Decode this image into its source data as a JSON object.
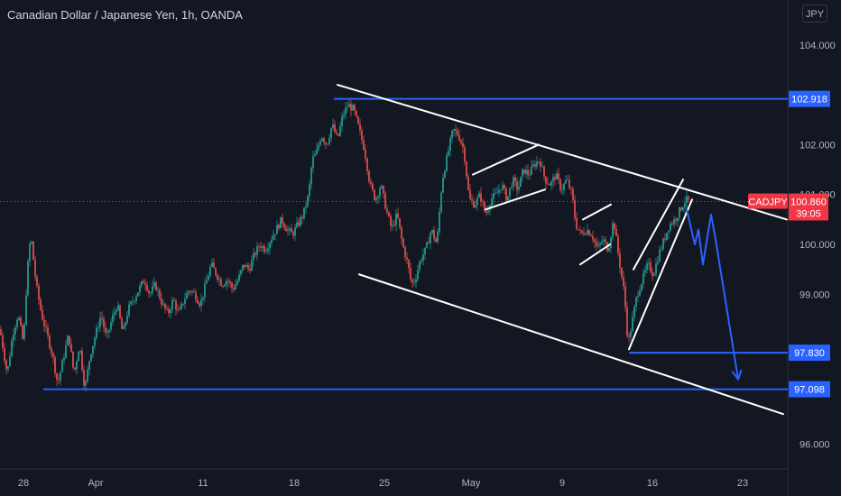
{
  "header": {
    "title": "Canadian Dollar / Japanese Yen, 1h, OANDA",
    "currency": "JPY"
  },
  "colors": {
    "background": "#131722",
    "up": "#26a69a",
    "down": "#ef5350",
    "drawing": "#ffffff",
    "level": "#2962ff",
    "projection": "#2962ff",
    "price_tag": "#f23645"
  },
  "chart_data": {
    "type": "candlestick",
    "title": "Canadian Dollar / Japanese Yen, 1h, OANDA",
    "symbol": "CADJPY",
    "ylim": [
      95.5,
      104.9
    ],
    "y_ticks": [
      96.0,
      97.0,
      98.0,
      99.0,
      100.0,
      101.0,
      102.0,
      103.0,
      104.0
    ],
    "x_ticks": [
      "28",
      "Apr",
      "11",
      "18",
      "25",
      "May",
      "9",
      "16",
      "23"
    ],
    "grid": false,
    "current": {
      "symbol": "CADJPY",
      "price": "100.860",
      "countdown": "39:05"
    },
    "levels": [
      {
        "value": 102.918,
        "label": "102.918"
      },
      {
        "value": 97.83,
        "label": "97.830"
      },
      {
        "value": 97.098,
        "label": "97.098"
      }
    ],
    "price_path": [
      [
        0,
        98.3
      ],
      [
        8,
        97.4
      ],
      [
        14,
        98.2
      ],
      [
        20,
        98.6
      ],
      [
        26,
        98.0
      ],
      [
        30,
        99.4
      ],
      [
        34,
        100.2
      ],
      [
        40,
        99.2
      ],
      [
        46,
        98.6
      ],
      [
        52,
        98.2
      ],
      [
        58,
        97.8
      ],
      [
        64,
        97.2
      ],
      [
        70,
        97.7
      ],
      [
        76,
        98.2
      ],
      [
        82,
        97.4
      ],
      [
        88,
        98.0
      ],
      [
        94,
        97.1
      ],
      [
        100,
        97.8
      ],
      [
        106,
        98.2
      ],
      [
        112,
        98.6
      ],
      [
        118,
        98.1
      ],
      [
        124,
        98.5
      ],
      [
        130,
        98.8
      ],
      [
        136,
        98.2
      ],
      [
        142,
        98.7
      ],
      [
        148,
        98.9
      ],
      [
        154,
        99.1
      ],
      [
        160,
        99.3
      ],
      [
        166,
        99.0
      ],
      [
        172,
        99.2
      ],
      [
        180,
        98.8
      ],
      [
        186,
        98.6
      ],
      [
        192,
        98.9
      ],
      [
        198,
        98.6
      ],
      [
        204,
        98.9
      ],
      [
        210,
        99.1
      ],
      [
        216,
        99.0
      ],
      [
        222,
        98.8
      ],
      [
        228,
        99.2
      ],
      [
        234,
        99.6
      ],
      [
        240,
        99.4
      ],
      [
        246,
        99.2
      ],
      [
        252,
        99.3
      ],
      [
        258,
        99.1
      ],
      [
        264,
        99.3
      ],
      [
        270,
        99.6
      ],
      [
        276,
        99.5
      ],
      [
        282,
        99.8
      ],
      [
        288,
        100.0
      ],
      [
        294,
        99.9
      ],
      [
        300,
        100.1
      ],
      [
        306,
        100.3
      ],
      [
        312,
        100.5
      ],
      [
        318,
        100.3
      ],
      [
        324,
        100.2
      ],
      [
        330,
        100.4
      ],
      [
        336,
        100.6
      ],
      [
        342,
        101.0
      ],
      [
        346,
        101.7
      ],
      [
        350,
        101.8
      ],
      [
        356,
        102.2
      ],
      [
        362,
        102.0
      ],
      [
        368,
        102.4
      ],
      [
        374,
        102.1
      ],
      [
        380,
        102.6
      ],
      [
        386,
        102.8
      ],
      [
        392,
        102.7
      ],
      [
        398,
        102.3
      ],
      [
        404,
        101.9
      ],
      [
        410,
        101.2
      ],
      [
        416,
        100.9
      ],
      [
        422,
        101.2
      ],
      [
        428,
        100.7
      ],
      [
        434,
        100.3
      ],
      [
        440,
        100.6
      ],
      [
        446,
        100.0
      ],
      [
        452,
        99.6
      ],
      [
        456,
        99.2
      ],
      [
        460,
        99.3
      ],
      [
        466,
        99.7
      ],
      [
        472,
        99.9
      ],
      [
        478,
        100.3
      ],
      [
        484,
        100.0
      ],
      [
        490,
        101.3
      ],
      [
        496,
        101.8
      ],
      [
        502,
        102.3
      ],
      [
        508,
        102.2
      ],
      [
        514,
        101.9
      ],
      [
        520,
        100.9
      ],
      [
        526,
        100.8
      ],
      [
        532,
        101.0
      ],
      [
        538,
        100.6
      ],
      [
        544,
        100.9
      ],
      [
        550,
        101.0
      ],
      [
        556,
        101.2
      ],
      [
        562,
        100.9
      ],
      [
        568,
        101.3
      ],
      [
        574,
        101.1
      ],
      [
        580,
        101.5
      ],
      [
        586,
        101.4
      ],
      [
        592,
        101.6
      ],
      [
        598,
        101.7
      ],
      [
        604,
        101.3
      ],
      [
        610,
        101.2
      ],
      [
        616,
        101.4
      ],
      [
        622,
        101.1
      ],
      [
        628,
        101.3
      ],
      [
        634,
        101.0
      ],
      [
        638,
        100.4
      ],
      [
        644,
        100.2
      ],
      [
        650,
        100.3
      ],
      [
        656,
        100.2
      ],
      [
        662,
        99.9
      ],
      [
        668,
        100.1
      ],
      [
        674,
        99.9
      ],
      [
        680,
        100.5
      ],
      [
        686,
        99.7
      ],
      [
        692,
        99.0
      ],
      [
        696,
        98.0
      ],
      [
        700,
        98.4
      ],
      [
        706,
        99.0
      ],
      [
        712,
        99.3
      ],
      [
        718,
        99.6
      ],
      [
        724,
        99.4
      ],
      [
        730,
        99.8
      ],
      [
        736,
        100.1
      ],
      [
        742,
        100.4
      ],
      [
        748,
        100.5
      ],
      [
        754,
        100.7
      ],
      [
        760,
        100.9
      ],
      [
        764,
        100.86
      ]
    ],
    "drawings": {
      "channel_upper": [
        [
          374,
          103.2
        ],
        [
          872,
          100.5
        ]
      ],
      "channel_lower": [
        [
          398,
          99.4
        ],
        [
          868,
          96.6
        ]
      ],
      "rising_wedge_lines": [
        [
          [
            697,
            97.9
          ],
          [
            767,
            100.9
          ]
        ],
        [
          [
            702,
            99.5
          ],
          [
            757,
            101.3
          ]
        ]
      ],
      "flags": [
        [
          [
            524,
            101.4
          ],
          [
            597,
            102.0
          ]
        ],
        [
          [
            538,
            100.7
          ],
          [
            604,
            101.1
          ]
        ],
        [
          [
            646,
            100.5
          ],
          [
            677,
            100.8
          ]
        ],
        [
          [
            643,
            99.6
          ],
          [
            676,
            100.0
          ]
        ]
      ],
      "projection_path": [
        [
          761,
          100.7
        ],
        [
          770,
          100.0
        ],
        [
          774,
          100.3
        ],
        [
          779,
          99.6
        ],
        [
          788,
          100.6
        ],
        [
          793,
          100.1
        ],
        [
          818,
          97.3
        ]
      ]
    }
  }
}
